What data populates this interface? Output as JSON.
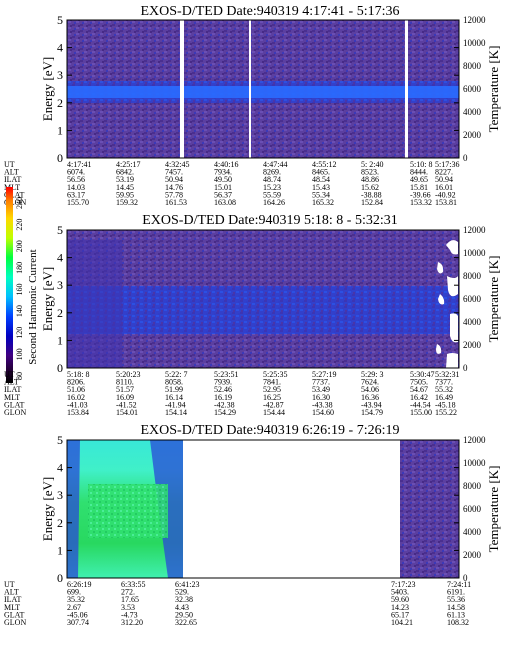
{
  "colorbar": {
    "ticks": [
      "80",
      "100",
      "120",
      "140",
      "160",
      "180",
      "200",
      "220",
      "240"
    ],
    "label": "Second Harmonic Current",
    "colors": [
      "#ff0000",
      "#ff7f00",
      "#ffd800",
      "#bfff00",
      "#00ff40",
      "#00ffc0",
      "#00c0ff",
      "#0040ff",
      "#0000c0",
      "#400080",
      "#200030",
      "#000000"
    ]
  },
  "palette": {
    "background_purple": "#5a3d9e",
    "band_blue": "#1b3be0",
    "band_core": "#2a6cff",
    "green": "#20e060",
    "cyan": "#40f0e0"
  },
  "chart_data": [
    {
      "type": "heatmap",
      "title": "EXOS-D/TED   Date:940319  4:17:41 - 5:17:36",
      "ylabel": "Energy [eV]",
      "y2label": "Temperature [K]",
      "ylim": [
        0,
        5
      ],
      "yticks": [
        "0",
        "1",
        "2",
        "3",
        "4",
        "5"
      ],
      "y2lim": [
        0,
        12000
      ],
      "y2ticks": [
        "0",
        "2000",
        "4000",
        "6000",
        "8000",
        "10000",
        "12000"
      ],
      "gaps_at_ut": [
        "4:32:45",
        "4:47:44",
        "5:10:8"
      ],
      "band_energy_ev": [
        2.3,
        2.8
      ],
      "rows": [
        {
          "label": "UT",
          "values": [
            "4:17:41",
            "4:25:17",
            "4:32:45",
            "4:40:16",
            "4:47:44",
            "4:55:12",
            "5: 2:40",
            "5:10: 8",
            "5:17:36"
          ]
        },
        {
          "label": "ALT",
          "values": [
            "6074.",
            "6842.",
            "7457.",
            "7934.",
            "8269.",
            "8465.",
            "8523.",
            "8444.",
            "8227."
          ]
        },
        {
          "label": "ILAT",
          "values": [
            "56.56",
            "53.19",
            "50.94",
            "49.50",
            "48.74",
            "48.54",
            "48.86",
            "49.65",
            "50.94"
          ]
        },
        {
          "label": "MLT",
          "values": [
            "14.03",
            "14.45",
            "14.76",
            "15.01",
            "15.23",
            "15.43",
            "15.62",
            "15.81",
            "16.01"
          ]
        },
        {
          "label": "GLAT",
          "values": [
            "63.17",
            "59.95",
            "57.78",
            "56.37",
            "55.59",
            "55.34",
            "-38.88",
            "-39.66",
            "-40.92"
          ]
        },
        {
          "label": "GLON",
          "values": [
            "155.70",
            "159.32",
            "161.53",
            "163.08",
            "164.26",
            "165.32",
            "152.84",
            "153.32",
            "153.81"
          ]
        }
      ]
    },
    {
      "type": "heatmap",
      "title": "EXOS-D/TED   Date:940319  5:18: 8 - 5:32:31",
      "ylabel": "Energy [eV]",
      "y2label": "Temperature [K]",
      "ylim": [
        0,
        5
      ],
      "yticks": [
        "0",
        "1",
        "2",
        "3",
        "4",
        "5"
      ],
      "y2lim": [
        0,
        12000
      ],
      "y2ticks": [
        "0",
        "2000",
        "4000",
        "6000",
        "8000",
        "10000",
        "12000"
      ],
      "band_energy_ev": [
        1.3,
        3.0
      ],
      "rows": [
        {
          "label": "UT",
          "values": [
            "5:18: 8",
            "5:20:23",
            "5:22: 7",
            "5:23:51",
            "5:25:35",
            "5:27:19",
            "5:29: 3",
            "5:30:47",
            "5:32:31"
          ]
        },
        {
          "label": "ALT",
          "values": [
            "8206.",
            "8110.",
            "8058.",
            "7939.",
            "7841.",
            "7737.",
            "7624.",
            "7505.",
            "7377."
          ]
        },
        {
          "label": "ILAT",
          "values": [
            "51.06",
            "51.57",
            "51.99",
            "52.46",
            "52.95",
            "53.49",
            "54.06",
            "54.67",
            "55.32"
          ]
        },
        {
          "label": "MLT",
          "values": [
            "16.02",
            "16.09",
            "16.14",
            "16.19",
            "16.25",
            "16.30",
            "16.36",
            "16.42",
            "16.49"
          ]
        },
        {
          "label": "GLAT",
          "values": [
            "-41.03",
            "-41.52",
            "-41.94",
            "-42.38",
            "-42.87",
            "-43.38",
            "-43.94",
            "-44.54",
            "-45.18"
          ]
        },
        {
          "label": "GLON",
          "values": [
            "153.84",
            "154.01",
            "154.14",
            "154.29",
            "154.44",
            "154.60",
            "154.79",
            "155.00",
            "155.22"
          ]
        }
      ]
    },
    {
      "type": "heatmap",
      "title": "EXOS-D/TED   Date:940319  6:26:19 - 7:26:19",
      "ylabel": "Energy [eV]",
      "y2label": "Temperature [K]",
      "ylim": [
        0,
        5
      ],
      "yticks": [
        "0",
        "1",
        "2",
        "3",
        "4",
        "5"
      ],
      "y2lim": [
        0,
        12000
      ],
      "y2ticks": [
        "0",
        "2000",
        "4000",
        "6000",
        "8000",
        "10000",
        "12000"
      ],
      "data_intervals_ut": [
        [
          "6:26:19",
          "6:41:23"
        ],
        [
          "7:17:23",
          "7:26:19"
        ]
      ],
      "rows": [
        {
          "label": "UT",
          "values": [
            "6:26:19",
            "6:33:55",
            "6:41:23",
            "7:17:23",
            "7:24:11"
          ]
        },
        {
          "label": "ALT",
          "values": [
            "699.",
            "272.",
            "529.",
            "5403.",
            "6191."
          ]
        },
        {
          "label": "ILAT",
          "values": [
            "35.32",
            "17.65",
            "32.38",
            "59.60",
            "55.36"
          ]
        },
        {
          "label": "MLT",
          "values": [
            "2.67",
            "3.53",
            "4.43",
            "14.23",
            "14.58"
          ]
        },
        {
          "label": "GLAT",
          "values": [
            "-45.06",
            "-4.73",
            "29.50",
            "65.17",
            "61.13"
          ]
        },
        {
          "label": "GLON",
          "values": [
            "307.74",
            "312.20",
            "322.65",
            "104.21",
            "108.32"
          ]
        }
      ]
    }
  ]
}
